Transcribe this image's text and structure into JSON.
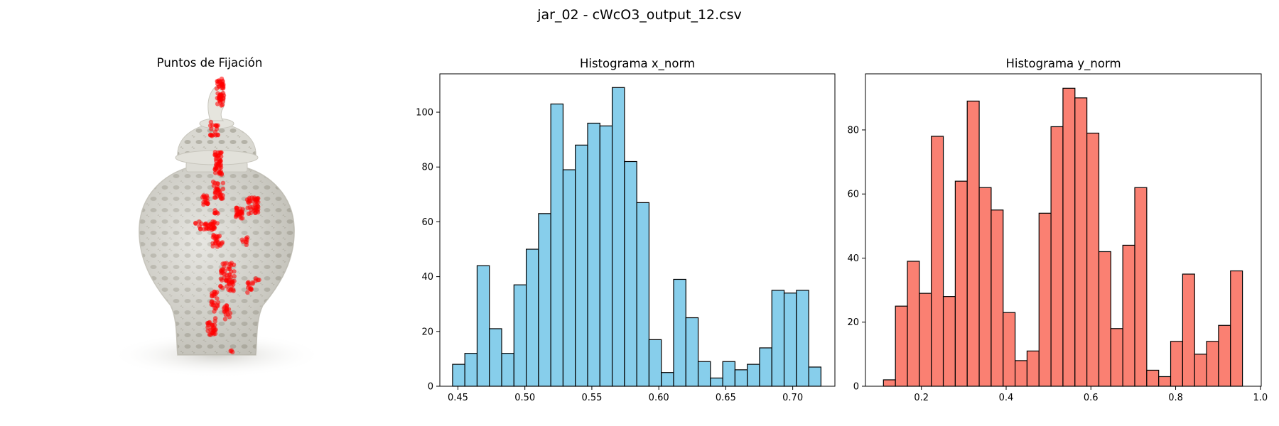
{
  "figure": {
    "suptitle": "jar_02 - cWcO3_output_12.csv"
  },
  "image_panel": {
    "title": "Puntos de Fijación",
    "marker_color": "#ff0000",
    "jar_color": "#dcdbd4"
  },
  "chart_data": [
    {
      "type": "bar",
      "title": "Histograma x_norm",
      "xlabel": "",
      "ylabel": "",
      "color": "#87ceeb",
      "edgecolor": "#000000",
      "xlim": [
        0.4365,
        0.7315
      ],
      "ylim": [
        0,
        114
      ],
      "xticks": [
        0.45,
        0.5,
        0.55,
        0.6,
        0.65,
        0.7
      ],
      "xtick_labels": [
        "0.45",
        "0.50",
        "0.55",
        "0.60",
        "0.65",
        "0.70"
      ],
      "yticks": [
        0,
        20,
        40,
        60,
        80,
        100
      ],
      "yticks_labels": [
        "0",
        "20",
        "40",
        "60",
        "80",
        "100"
      ],
      "bin_start": 0.446,
      "bin_width": 0.00917,
      "values": [
        8,
        12,
        44,
        21,
        12,
        37,
        50,
        63,
        103,
        79,
        88,
        96,
        95,
        109,
        82,
        67,
        17,
        5,
        39,
        25,
        9,
        3,
        9,
        6,
        8,
        14,
        35,
        34,
        35,
        7
      ]
    },
    {
      "type": "bar",
      "title": "Histograma y_norm",
      "xlabel": "",
      "ylabel": "",
      "color": "#fa8072",
      "edgecolor": "#000000",
      "xlim": [
        0.068,
        1.002
      ],
      "ylim": [
        0,
        97.5
      ],
      "xticks": [
        0.2,
        0.4,
        0.6,
        0.8,
        1.0
      ],
      "xtick_labels": [
        "0.2",
        "0.4",
        "0.6",
        "0.8",
        "1.0"
      ],
      "yticks": [
        0,
        20,
        40,
        60,
        80
      ],
      "yticks_labels": [
        "0",
        "20",
        "40",
        "60",
        "80"
      ],
      "bin_start": 0.1105,
      "bin_width": 0.02824,
      "values": [
        2,
        25,
        39,
        29,
        78,
        28,
        64,
        89,
        62,
        55,
        23,
        8,
        11,
        54,
        81,
        93,
        90,
        79,
        42,
        18,
        44,
        62,
        5,
        3,
        14,
        35,
        10,
        14,
        19,
        36
      ]
    }
  ]
}
